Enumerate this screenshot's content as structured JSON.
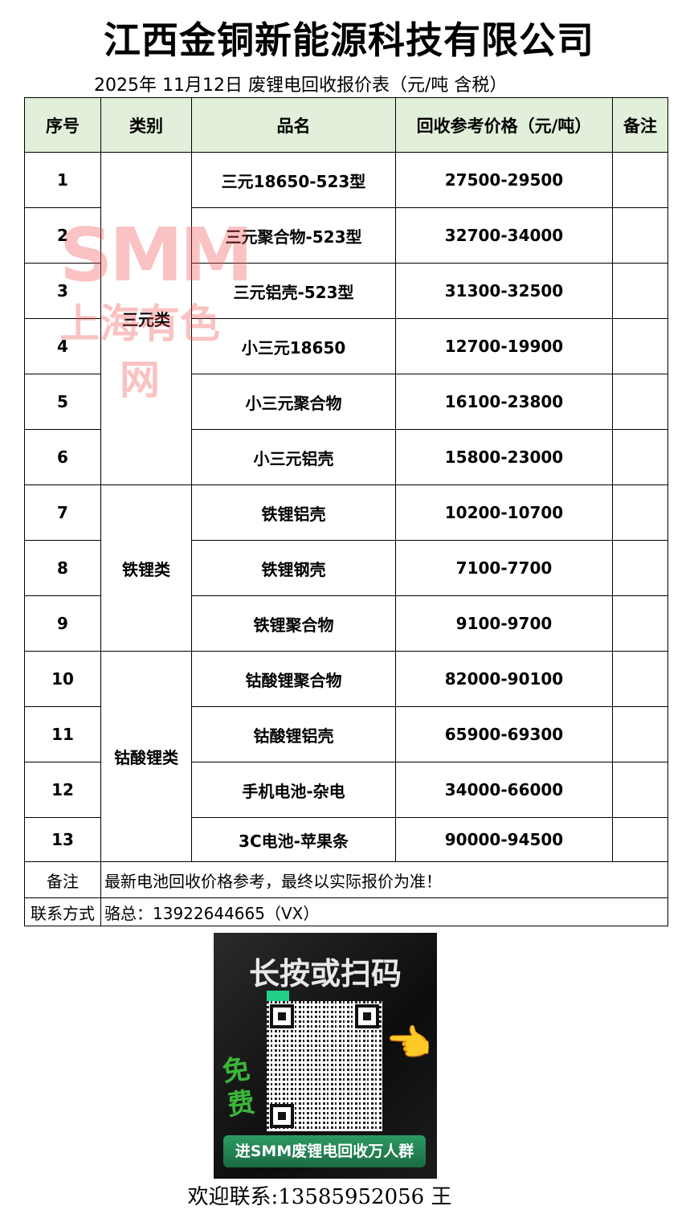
{
  "header": {
    "company": "江西金铜新能源科技有限公司",
    "subtitle": "2025年 11月12日 废锂电回收报价表（元/吨  含税）"
  },
  "table": {
    "columns": [
      "序号",
      "类别",
      "品名",
      "回收参考价格（元/吨）",
      "备注"
    ],
    "categories": [
      "三元类",
      "铁锂类",
      "钴酸锂类"
    ],
    "rows": [
      {
        "no": "1",
        "name": "三元18650-523型",
        "price": "27500-29500",
        "remark": ""
      },
      {
        "no": "2",
        "name": "三元聚合物-523型",
        "price": "32700-34000",
        "remark": ""
      },
      {
        "no": "3",
        "name": "三元铝壳-523型",
        "price": "31300-32500",
        "remark": ""
      },
      {
        "no": "4",
        "name": "小三元18650",
        "price": "12700-19900",
        "remark": ""
      },
      {
        "no": "5",
        "name": "小三元聚合物",
        "price": "16100-23800",
        "remark": ""
      },
      {
        "no": "6",
        "name": "小三元铝壳",
        "price": "15800-23000",
        "remark": ""
      },
      {
        "no": "7",
        "name": "铁锂铝壳",
        "price": "10200-10700",
        "remark": ""
      },
      {
        "no": "8",
        "name": "铁锂钢壳",
        "price": "7100-7700",
        "remark": ""
      },
      {
        "no": "9",
        "name": "铁锂聚合物",
        "price": "9100-9700",
        "remark": ""
      },
      {
        "no": "10",
        "name": "钴酸锂聚合物",
        "price": "82000-90100",
        "remark": ""
      },
      {
        "no": "11",
        "name": "钴酸锂铝壳",
        "price": "65900-69300",
        "remark": ""
      },
      {
        "no": "12",
        "name": "手机电池-杂电",
        "price": "34000-66000",
        "remark": ""
      },
      {
        "no": "13",
        "name": "3C电池-苹果条",
        "price": "90000-94500",
        "remark": ""
      }
    ],
    "note_label": "备注",
    "note_text": "最新电池回收价格参考，最终以实际报价为准！",
    "contact_label": "联系方式",
    "contact_text": "骆总：13922644665（VX）"
  },
  "watermark": {
    "logo": "SMM",
    "text": "上海有色网",
    "color": "#f05050"
  },
  "qr_card": {
    "heading": "长按或扫码",
    "free": "免费",
    "button": "进SMM废锂电回收万人群",
    "accent": "#22d08a"
  },
  "footer": {
    "text": "欢迎联系:13585952056  王"
  }
}
